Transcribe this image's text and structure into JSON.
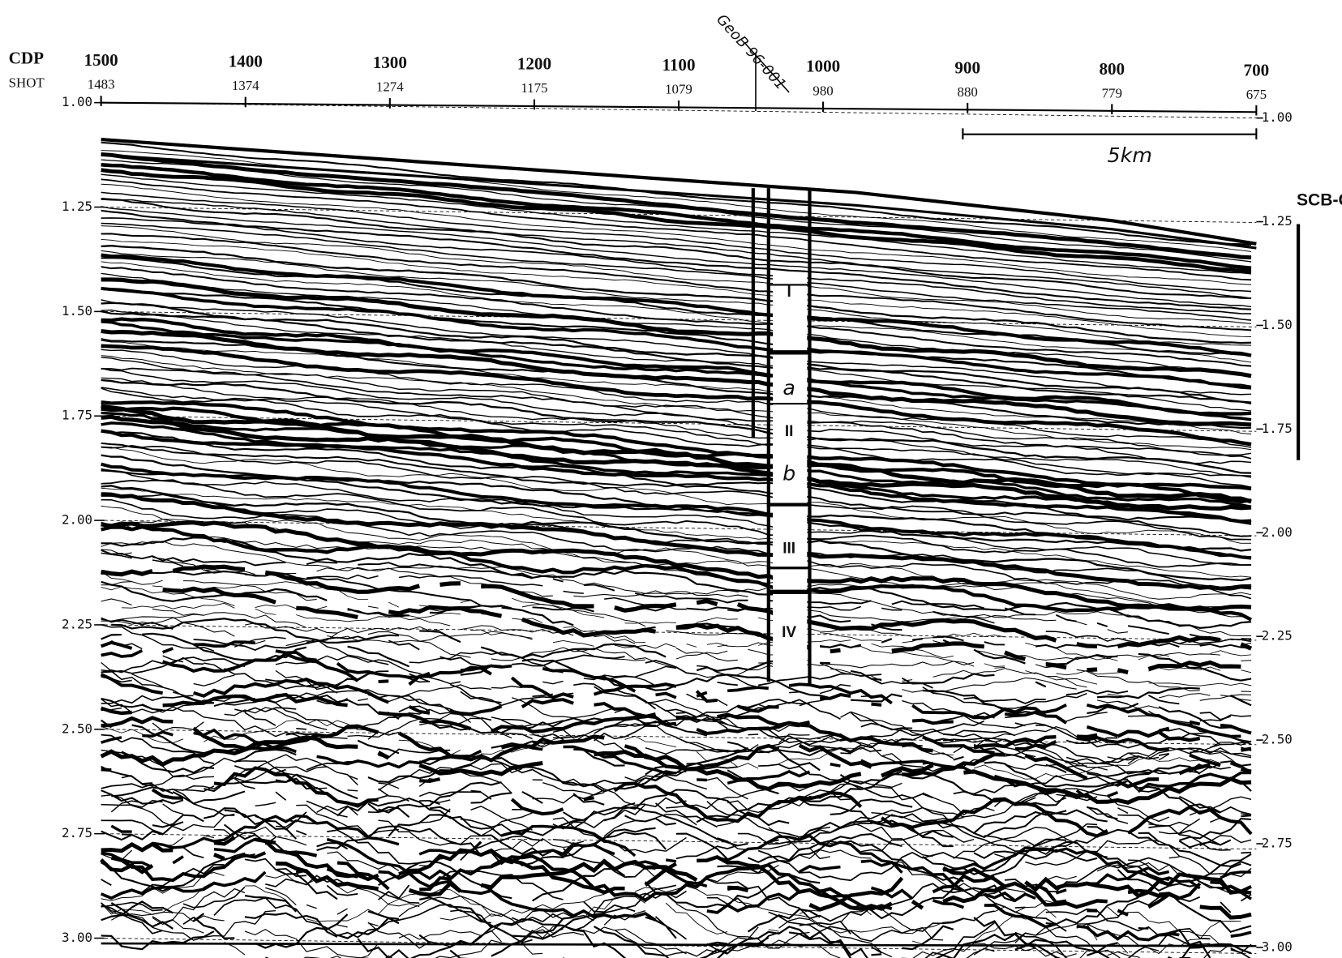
{
  "axis": {
    "cdp_label": "CDP",
    "shot_label": "SHOT",
    "cdp": [
      1500,
      1400,
      1300,
      1200,
      1100,
      1000,
      900,
      800,
      700
    ],
    "shot": [
      1483,
      1374,
      1274,
      1175,
      1079,
      980,
      880,
      779,
      675
    ],
    "time_left": [
      "1.00",
      "1.25",
      "1.50",
      "1.75",
      "2.00",
      "2.25",
      "2.50",
      "2.75",
      "3.00"
    ],
    "time_right": [
      "1.00",
      "1.25",
      "1.50",
      "1.75",
      "2.00",
      "2.25",
      "2.50",
      "2.75",
      "3.00"
    ]
  },
  "annotations": {
    "well": "GeoB 96-001",
    "scale": "5km",
    "section": "SCB-C",
    "units": [
      "I",
      "a",
      "II",
      "b",
      "III",
      "IV"
    ]
  }
}
